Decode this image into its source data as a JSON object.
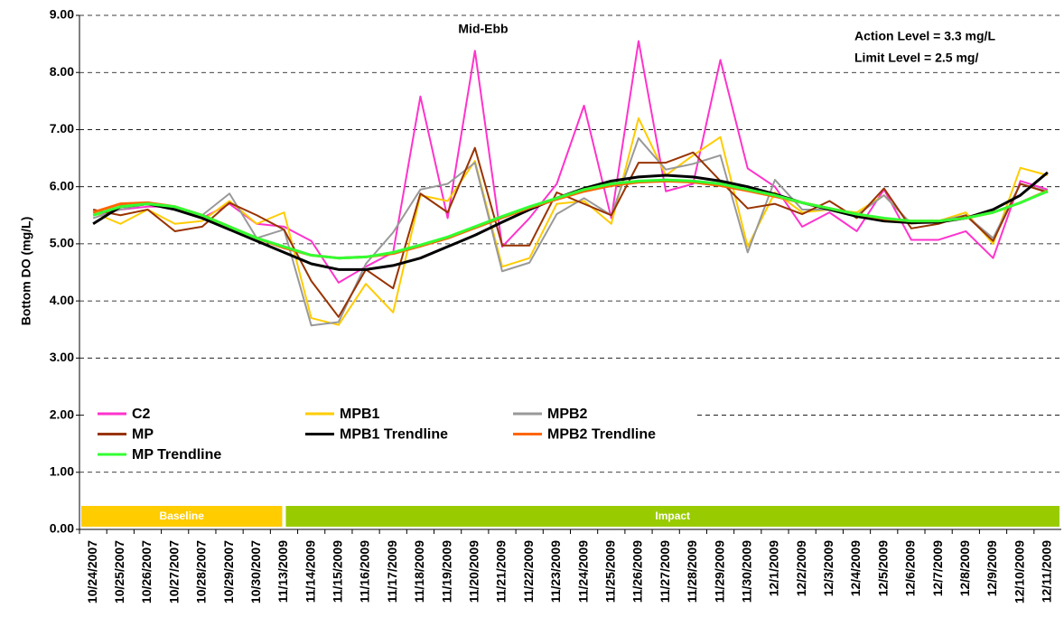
{
  "chart_data": {
    "type": "line",
    "ylabel": "Bottom DO (mg/L)",
    "annotations": [
      "Mid-Ebb",
      "Action Level = 3.3 mg/L",
      "Limit Level = 2.5 mg/"
    ],
    "periods": [
      {
        "label": "Baseline",
        "color": "#ffcc00"
      },
      {
        "label": "Impact",
        "color": "#99cc00"
      }
    ],
    "categories": [
      "10/24/2007",
      "10/25/2007",
      "10/26/2007",
      "10/27/2007",
      "10/28/2007",
      "10/29/2007",
      "10/30/2007",
      "11/13/2009",
      "11/14/2009",
      "11/15/2009",
      "11/16/2009",
      "11/17/2009",
      "11/18/2009",
      "11/19/2009",
      "11/20/2009",
      "11/21/2009",
      "11/22/2009",
      "11/23/2009",
      "11/24/2009",
      "11/25/2009",
      "11/26/2009",
      "11/27/2009",
      "11/28/2009",
      "11/29/2009",
      "11/30/2009",
      "12/1/2009",
      "12/2/2009",
      "12/3/2009",
      "12/4/2009",
      "12/5/2009",
      "12/6/2009",
      "12/7/2009",
      "12/8/2009",
      "12/9/2009",
      "12/10/2009",
      "12/11/2009"
    ],
    "series": [
      {
        "name": "C2",
        "color": "#ff33cc",
        "width": 2,
        "values": [
          5.5,
          5.6,
          5.65,
          5.65,
          5.45,
          5.7,
          5.35,
          5.3,
          5.05,
          4.32,
          4.6,
          4.85,
          7.58,
          5.45,
          8.38,
          4.95,
          5.45,
          6.05,
          7.42,
          5.45,
          8.55,
          5.92,
          6.05,
          8.22,
          6.32,
          6.0,
          5.3,
          5.55,
          5.22,
          5.95,
          5.07,
          5.07,
          5.22,
          4.75,
          6.1,
          5.95
        ]
      },
      {
        "name": "MPB1",
        "color": "#ffcc00",
        "width": 2,
        "values": [
          5.55,
          5.35,
          5.6,
          5.35,
          5.4,
          5.75,
          5.35,
          5.55,
          3.7,
          3.58,
          4.3,
          3.8,
          5.85,
          5.75,
          6.45,
          4.6,
          4.75,
          5.7,
          5.75,
          5.35,
          7.2,
          6.2,
          6.55,
          6.87,
          4.95,
          5.9,
          5.55,
          5.6,
          5.55,
          5.85,
          5.35,
          5.4,
          5.55,
          5.0,
          6.33,
          6.2
        ]
      },
      {
        "name": "MPB2",
        "color": "#999999",
        "width": 2,
        "values": [
          5.45,
          5.6,
          5.7,
          5.65,
          5.5,
          5.88,
          5.1,
          5.25,
          3.57,
          3.63,
          4.65,
          5.2,
          5.95,
          6.05,
          6.42,
          4.52,
          4.67,
          5.52,
          5.8,
          5.5,
          6.85,
          6.3,
          6.4,
          6.55,
          4.85,
          6.12,
          5.6,
          5.6,
          5.5,
          5.85,
          5.35,
          5.4,
          5.5,
          5.1,
          6.05,
          5.92
        ]
      },
      {
        "name": "MP",
        "color": "#993300",
        "width": 2,
        "values": [
          5.6,
          5.5,
          5.6,
          5.22,
          5.3,
          5.72,
          5.5,
          5.25,
          4.35,
          3.72,
          4.55,
          4.22,
          5.88,
          5.55,
          6.68,
          4.97,
          4.97,
          5.9,
          5.7,
          5.5,
          6.42,
          6.42,
          6.6,
          6.1,
          5.62,
          5.7,
          5.52,
          5.75,
          5.45,
          5.97,
          5.27,
          5.35,
          5.5,
          5.05,
          6.05,
          5.9
        ]
      },
      {
        "name": "MPB1 Trendline",
        "color": "#000000",
        "width": 3,
        "values": [
          5.35,
          5.65,
          5.7,
          5.6,
          5.45,
          5.25,
          5.05,
          4.85,
          4.65,
          4.55,
          4.55,
          4.62,
          4.75,
          4.95,
          5.15,
          5.38,
          5.6,
          5.8,
          5.97,
          6.1,
          6.17,
          6.2,
          6.17,
          6.1,
          6.0,
          5.87,
          5.72,
          5.6,
          5.48,
          5.4,
          5.37,
          5.38,
          5.45,
          5.6,
          5.85,
          6.25
        ]
      },
      {
        "name": "MPB2 Trendline",
        "color": "#ff6600",
        "width": 3,
        "values": [
          5.55,
          5.7,
          5.72,
          5.65,
          5.5,
          5.3,
          5.1,
          4.93,
          4.8,
          4.75,
          4.77,
          4.83,
          4.96,
          5.1,
          5.28,
          5.46,
          5.63,
          5.78,
          5.92,
          6.02,
          6.08,
          6.1,
          6.08,
          6.02,
          5.93,
          5.83,
          5.72,
          5.62,
          5.52,
          5.44,
          5.4,
          5.4,
          5.45,
          5.55,
          5.72,
          5.93
        ]
      },
      {
        "name": "MP Trendline",
        "color": "#33ff33",
        "width": 3,
        "values": [
          5.5,
          5.65,
          5.7,
          5.65,
          5.5,
          5.3,
          5.1,
          4.95,
          4.8,
          4.75,
          4.77,
          4.85,
          4.98,
          5.12,
          5.3,
          5.48,
          5.65,
          5.8,
          5.95,
          6.05,
          6.1,
          6.12,
          6.1,
          6.05,
          5.95,
          5.85,
          5.72,
          5.62,
          5.52,
          5.45,
          5.4,
          5.4,
          5.45,
          5.55,
          5.72,
          5.92
        ]
      }
    ],
    "ylim": [
      0,
      9
    ],
    "yticks": [
      {
        "value": 0,
        "label": "0.00"
      },
      {
        "value": 1,
        "label": "1.00"
      },
      {
        "value": 2,
        "label": "2.00"
      },
      {
        "value": 3,
        "label": "3.00"
      },
      {
        "value": 4,
        "label": "4.00"
      },
      {
        "value": 5,
        "label": "5.00"
      },
      {
        "value": 6,
        "label": "6.00"
      },
      {
        "value": 7,
        "label": "7.00"
      },
      {
        "value": 8,
        "label": "8.00"
      },
      {
        "value": 9,
        "label": "9.00"
      }
    ],
    "grid": true,
    "legend": "lower-left"
  }
}
